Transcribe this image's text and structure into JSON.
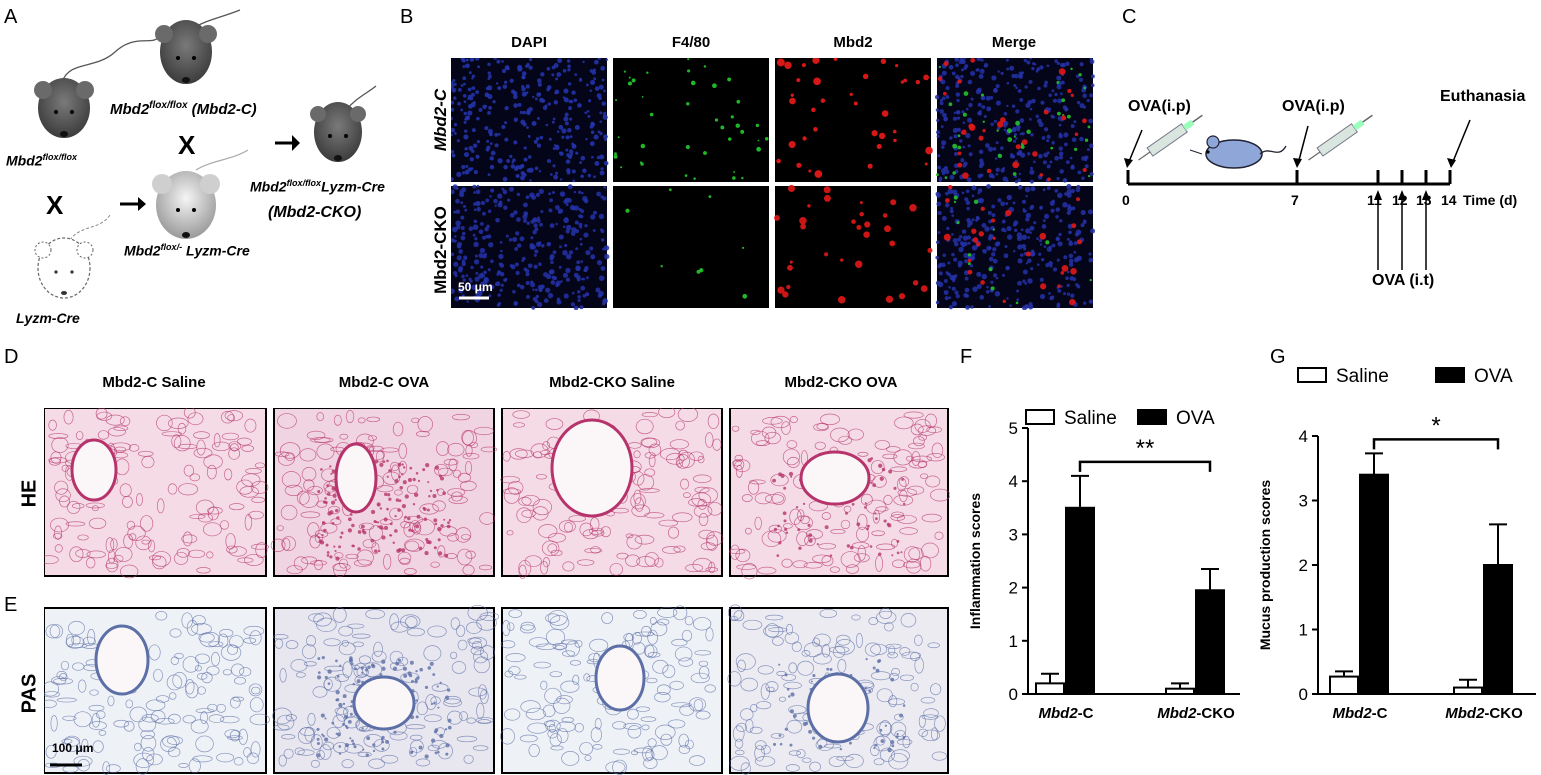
{
  "panel_letters": {
    "A": "A",
    "B": "B",
    "C": "C",
    "D": "D",
    "E": "E",
    "F": "F",
    "G": "G"
  },
  "panel_a": {
    "mouse1_label_base": "Mbd2",
    "mouse1_label_sup": "flox/flox",
    "mouse2_label_base": "Mbd2",
    "mouse2_label_sup": "flox/flox",
    "mouse2_label_suffix": " (Mbd2-C)",
    "mouse3_label": "Lyzm-Cre",
    "mouse4_label_base": "Mbd2",
    "mouse4_label_sup": "flox/-",
    "mouse4_label_suffix": " Lyzm-Cre",
    "mouse5_label_base": "Mbd2",
    "mouse5_label_sup": "flox/flox",
    "mouse5_label_suffix": "Lyzm-Cre",
    "mouse5_label_line2": "(Mbd2-CKO)",
    "cross_symbol": "X"
  },
  "panel_b": {
    "columns": [
      "DAPI",
      "F4/80",
      "Mbd2",
      "Merge"
    ],
    "rows": [
      "Mbd2-C",
      "Mbd2-CKO"
    ],
    "scale_bar": "50 μm"
  },
  "panel_c": {
    "label_ova_ip_1": "OVA(i.p)",
    "label_ova_ip_2": "OVA(i.p)",
    "label_euthanasia": "Euthanasia",
    "label_ova_it": "OVA (i.t)",
    "axis_label": "Time (d)",
    "ticks": [
      "0",
      "7",
      "11",
      "12",
      "13",
      "14"
    ]
  },
  "panel_de": {
    "columns": [
      "Mbd2-C Saline",
      "Mbd2-C OVA",
      "Mbd2-CKO Saline",
      "Mbd2-CKO OVA"
    ],
    "rows": [
      "HE",
      "PAS"
    ],
    "scale_bar": "100 μm"
  },
  "colors": {
    "dapi": "#2433a8",
    "f480": "#22c22a",
    "mbd2": "#e21818",
    "he_bg": "#f4dbe6",
    "he_tissue": "#b7336b",
    "pas_bg": "#eef1f6",
    "pas_tissue": "#5c6fa6",
    "bar_ova": "#000000",
    "bar_saline": "#ffffff",
    "mouse_gray": "#555555"
  },
  "chart_data": [
    {
      "type": "bar",
      "panel": "F",
      "categories": [
        "Mbd2-C",
        "Mbd2-CKO"
      ],
      "series": [
        {
          "name": "Saline",
          "values": [
            0.2,
            0.1
          ],
          "errors": [
            0.18,
            0.1
          ]
        },
        {
          "name": "OVA",
          "values": [
            3.5,
            1.95
          ],
          "errors": [
            0.6,
            0.4
          ]
        }
      ],
      "ylabel": "Inflammation scores",
      "ylim": [
        0,
        5
      ],
      "yticks": [
        "0",
        "1",
        "2",
        "3",
        "4",
        "5"
      ],
      "legend_placement": "top",
      "significance": "**"
    },
    {
      "type": "bar",
      "panel": "G",
      "categories": [
        "Mbd2-C",
        "Mbd2-CKO"
      ],
      "series": [
        {
          "name": "Saline",
          "values": [
            0.27,
            0.1
          ],
          "errors": [
            0.08,
            0.12
          ]
        },
        {
          "name": "OVA",
          "values": [
            3.4,
            2.0
          ],
          "errors": [
            0.33,
            0.63
          ]
        }
      ],
      "ylabel": "Mucus production scores",
      "ylim": [
        0,
        4
      ],
      "yticks": [
        "0",
        "1",
        "2",
        "3",
        "4"
      ],
      "legend_placement": "top",
      "significance": "*"
    }
  ]
}
